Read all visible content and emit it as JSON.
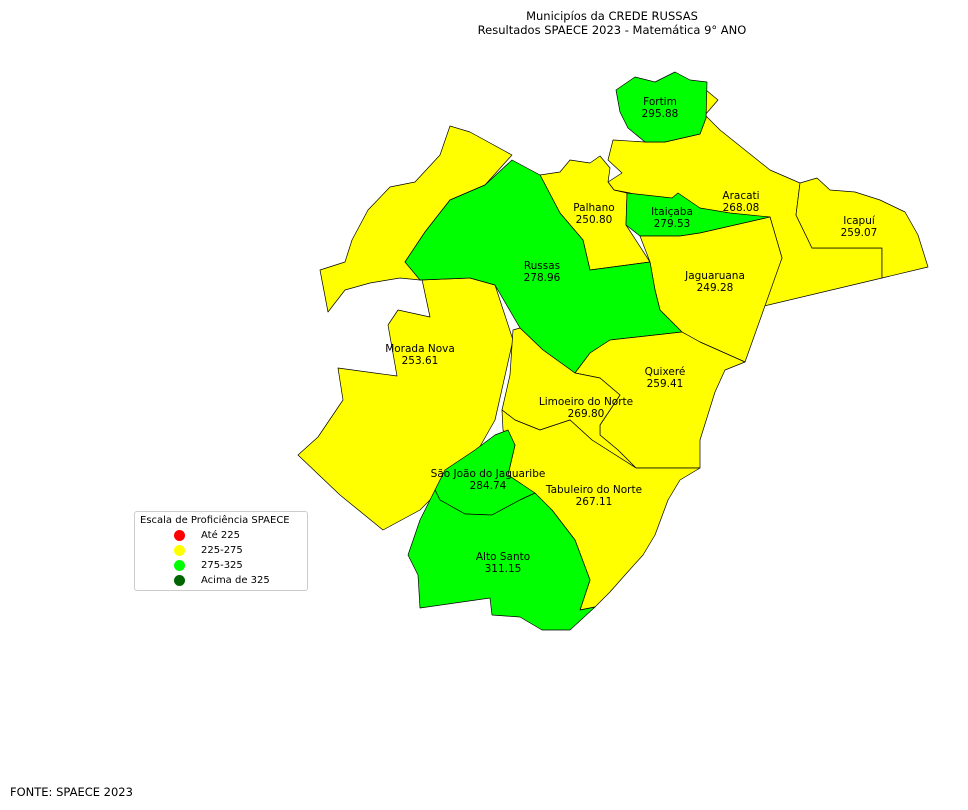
{
  "title": {
    "line1": "Municipíos da CREDE RUSSAS",
    "line2": "Resultados SPAECE 2023 - Matemática 9° ANO"
  },
  "municipalities": [
    {
      "name": "Fortim",
      "score": "295.88",
      "color": "#00ff00"
    },
    {
      "name": "Aracati",
      "score": "268.08",
      "color": "#ffff00"
    },
    {
      "name": "Icapuí",
      "score": "259.07",
      "color": "#ffff00"
    },
    {
      "name": "Palhano",
      "score": "250.80",
      "color": "#ffff00"
    },
    {
      "name": "Itaiçaba",
      "score": "279.53",
      "color": "#00ff00"
    },
    {
      "name": "Russas",
      "score": "278.96",
      "color": "#00ff00"
    },
    {
      "name": "Jaguaruana",
      "score": "249.28",
      "color": "#ffff00"
    },
    {
      "name": "Morada Nova",
      "score": "253.61",
      "color": "#ffff00"
    },
    {
      "name": "Quixeré",
      "score": "259.41",
      "color": "#ffff00"
    },
    {
      "name": "Limoeiro do Norte",
      "score": "269.80",
      "color": "#ffff00"
    },
    {
      "name": "São João do Jaguaribe",
      "score": "284.74",
      "color": "#00ff00"
    },
    {
      "name": "Tabuleiro do Norte",
      "score": "267.11",
      "color": "#ffff00"
    },
    {
      "name": "Alto Santo",
      "score": "311.15",
      "color": "#00ff00"
    }
  ],
  "legend": {
    "title": "Escala de Proficiência SPAECE",
    "items": [
      {
        "label": "Até 225",
        "color": "#ff0000"
      },
      {
        "label": "225-275",
        "color": "#ffff00"
      },
      {
        "label": "275-325",
        "color": "#00ff00"
      },
      {
        "label": "Acima de 325",
        "color": "#006400"
      }
    ]
  },
  "source": "FONTE: SPAECE 2023"
}
